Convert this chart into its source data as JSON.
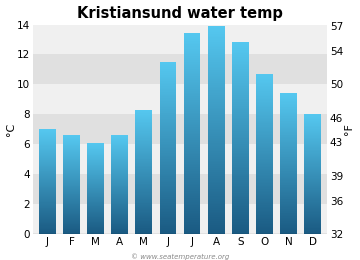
{
  "title": "Kristiansund water temp",
  "months": [
    "J",
    "F",
    "M",
    "A",
    "M",
    "J",
    "J",
    "A",
    "S",
    "O",
    "N",
    "D"
  ],
  "values_c": [
    7.0,
    6.6,
    6.1,
    6.6,
    8.3,
    11.5,
    13.4,
    13.9,
    12.8,
    10.7,
    9.4,
    8.0
  ],
  "ylim_c": [
    0,
    14
  ],
  "yticks_c": [
    0,
    2,
    4,
    6,
    8,
    10,
    12,
    14
  ],
  "yticks_f": [
    32,
    36,
    39,
    43,
    46,
    50,
    54,
    57
  ],
  "ylabel_left": "°C",
  "ylabel_right": "°F",
  "color_top": "#55c8f0",
  "color_bottom": "#1a5a82",
  "bg_color": "#ffffff",
  "plot_bg_color": "#ffffff",
  "band_color_light": "#f0f0f0",
  "band_color_dark": "#e0e0e0",
  "title_fontsize": 10.5,
  "axis_fontsize": 8,
  "tick_fontsize": 7.5,
  "watermark": "© www.seatemperature.org",
  "bar_width": 0.7
}
